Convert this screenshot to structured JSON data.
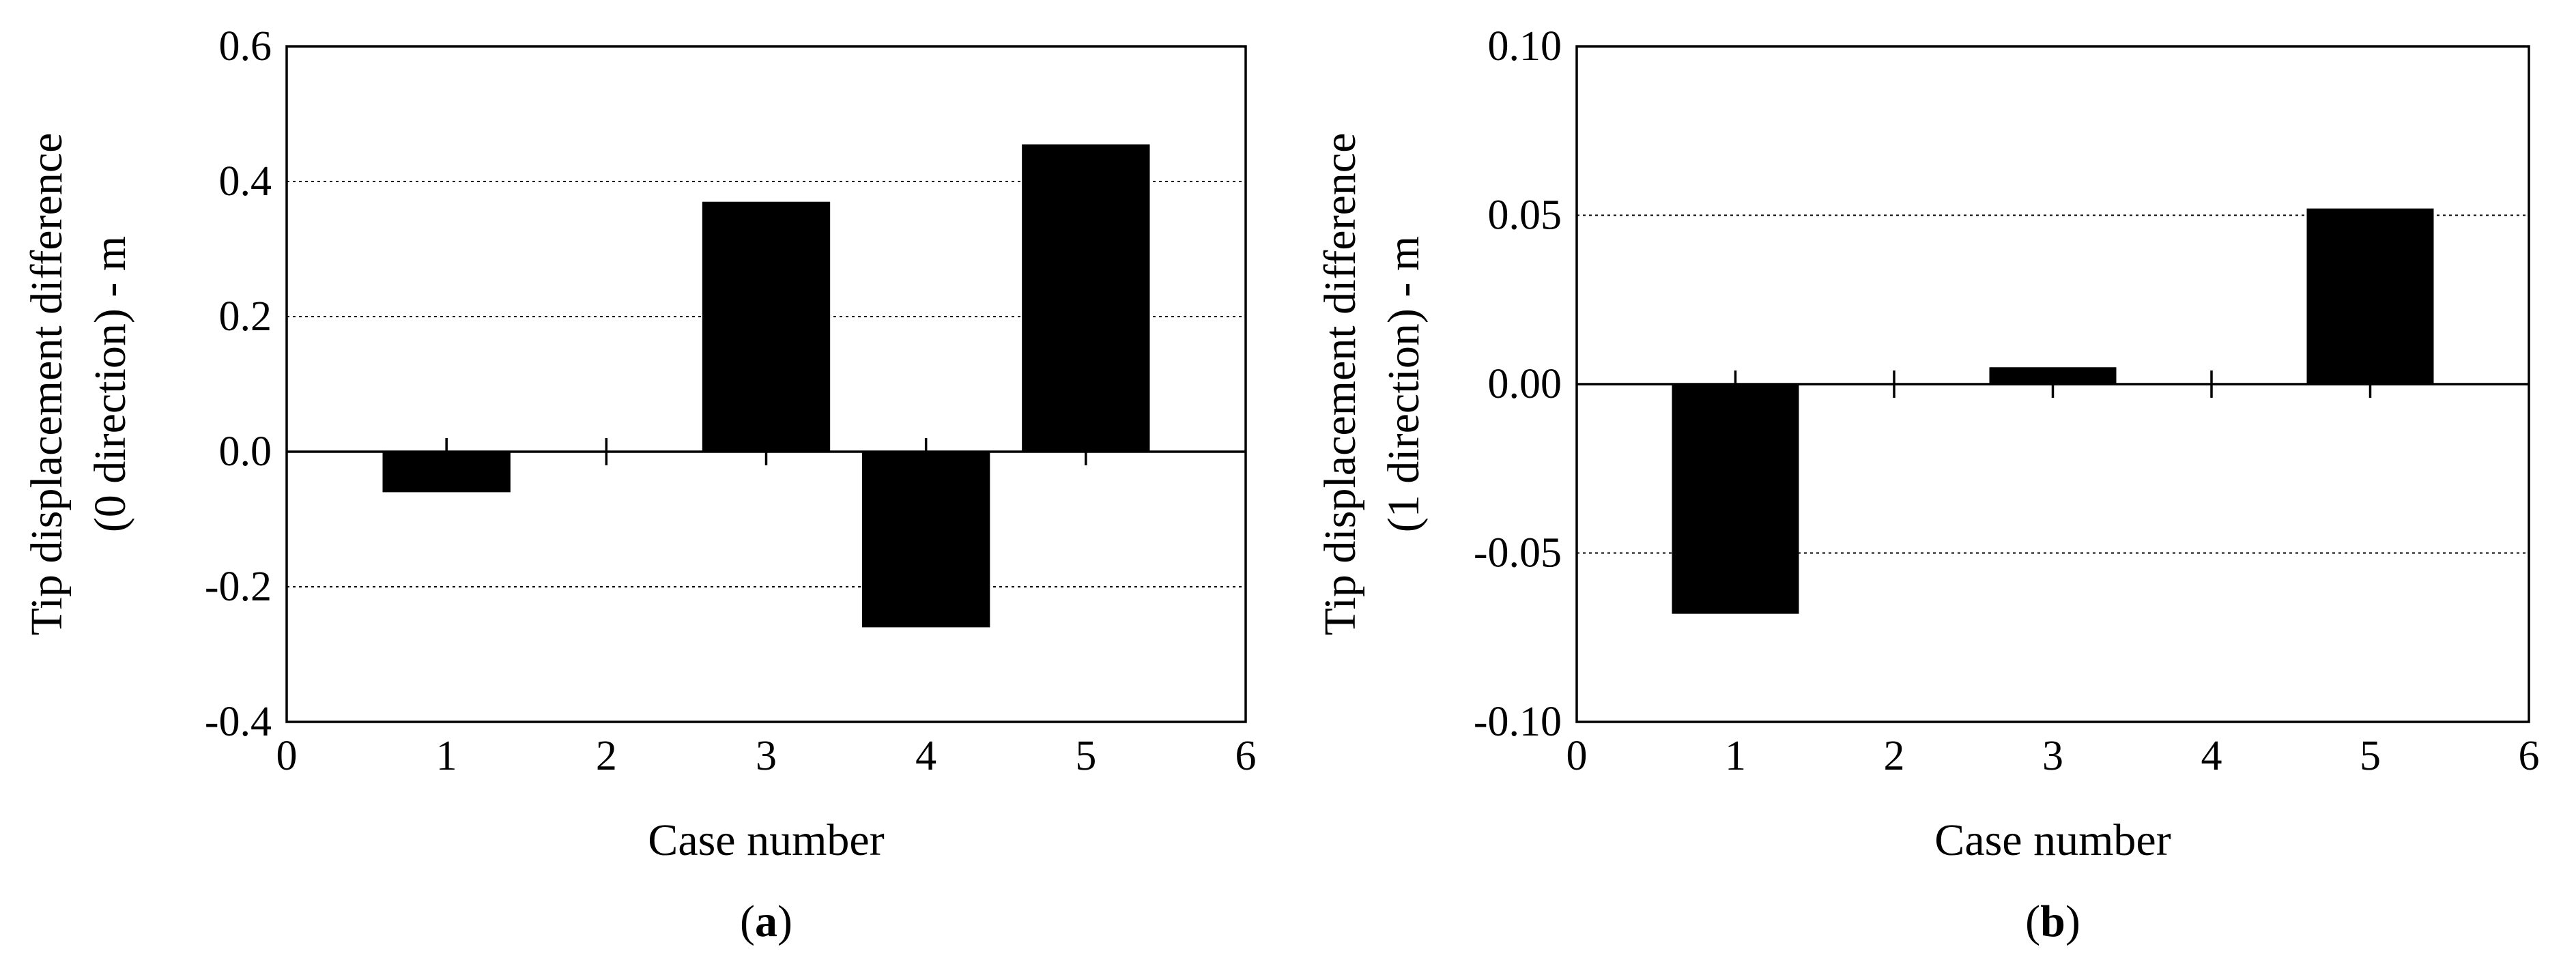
{
  "chart_data": [
    {
      "type": "bar",
      "panel_label": "a",
      "x": [
        1,
        3,
        4,
        5
      ],
      "values": [
        -0.06,
        0.37,
        -0.26,
        0.455
      ],
      "xlabel": "Case number",
      "ylabel_lines": [
        "Tip displacement difference",
        "(0 direction) - m"
      ],
      "xlim": [
        0,
        6
      ],
      "ylim": [
        -0.4,
        0.6
      ],
      "xticks": [
        0,
        1,
        2,
        3,
        4,
        5,
        6
      ],
      "xtick_labels": [
        "0",
        "1",
        "2",
        "3",
        "4",
        "5",
        "6"
      ],
      "yticks": [
        -0.4,
        -0.2,
        0.0,
        0.2,
        0.4,
        0.6
      ],
      "ytick_labels": [
        "-0.4",
        "-0.2",
        "0.0",
        "0.2",
        "0.4",
        "0.6"
      ],
      "grid": "horizontal dotted at interior y ticks",
      "zero_line": true,
      "bar_color": "#000000"
    },
    {
      "type": "bar",
      "panel_label": "b",
      "x": [
        1,
        3,
        5
      ],
      "values": [
        -0.068,
        0.005,
        0.052
      ],
      "xlabel": "Case number",
      "ylabel_lines": [
        "Tip displacement difference",
        "(1 direction) - m"
      ],
      "xlim": [
        0,
        6
      ],
      "ylim": [
        -0.1,
        0.1
      ],
      "xticks": [
        0,
        1,
        2,
        3,
        4,
        5,
        6
      ],
      "xtick_labels": [
        "0",
        "1",
        "2",
        "3",
        "4",
        "5",
        "6"
      ],
      "yticks": [
        -0.1,
        -0.05,
        0.0,
        0.05,
        0.1
      ],
      "ytick_labels": [
        "-0.10",
        "-0.05",
        "0.00",
        "0.05",
        "0.10"
      ],
      "grid": "horizontal dotted at interior y ticks",
      "zero_line": true,
      "bar_color": "#000000"
    }
  ]
}
